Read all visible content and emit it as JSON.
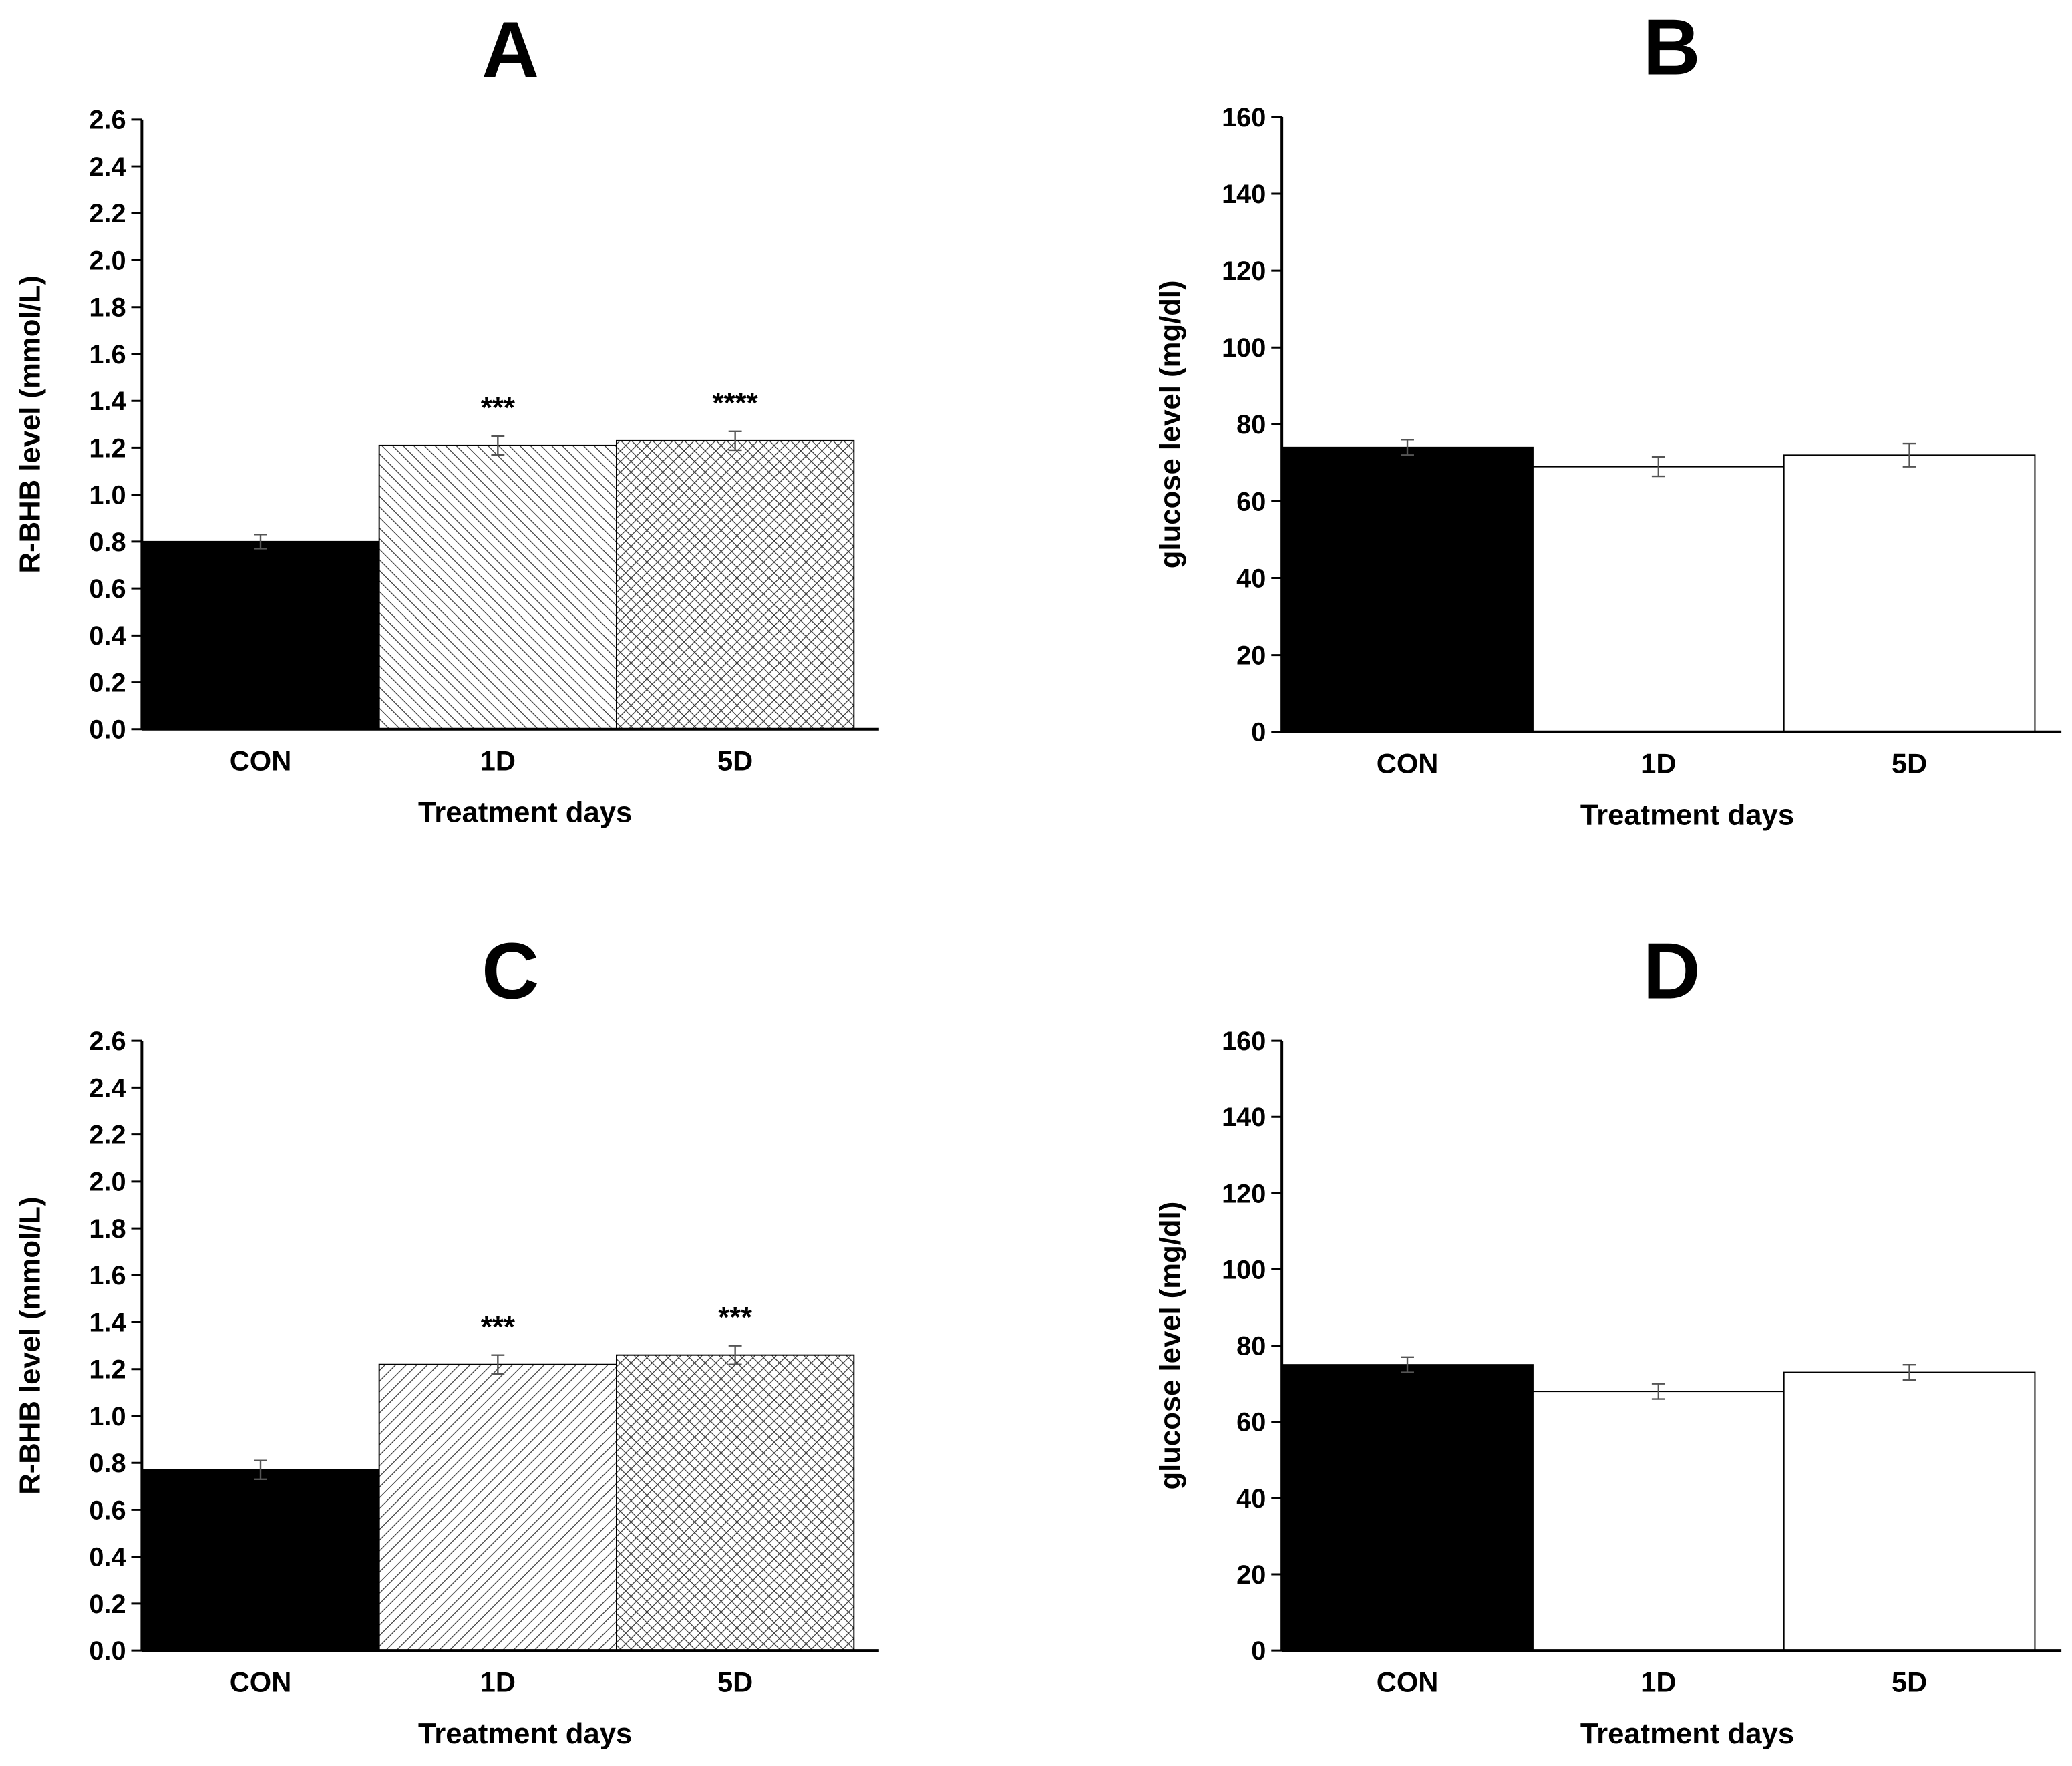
{
  "chart_data": [
    {
      "type": "bar",
      "title": "A",
      "x_label": "Treatment days",
      "y_label": "R-BHB level (mmol/L)",
      "categories": [
        "CON",
        "1D",
        "5D"
      ],
      "values": [
        0.8,
        1.21,
        1.23
      ],
      "errors": [
        0.03,
        0.04,
        0.04
      ],
      "annotations": [
        null,
        "***",
        "****"
      ],
      "colors": [
        "#000000",
        "#ffffff",
        "#ffffff"
      ],
      "patterns": [
        "solid",
        "diag-down",
        "cross"
      ],
      "ylim": [
        0,
        2.6
      ],
      "yticks": [
        {
          "value": 0,
          "label": "0.0"
        },
        0.2,
        0.4,
        0.6,
        0.8,
        {
          "value": 1,
          "label": "1.0"
        },
        1.2,
        1.4,
        1.6,
        1.8,
        {
          "value": 2,
          "label": "2.0"
        },
        2.2,
        2.4,
        2.6
      ]
    },
    {
      "type": "bar",
      "title": "B",
      "x_label": "Treatment days",
      "y_label": "glucose level (mg/dl)",
      "categories": [
        "CON",
        "1D",
        "5D"
      ],
      "values": [
        74,
        69,
        72
      ],
      "errors": [
        2,
        2.5,
        3
      ],
      "annotations": [
        null,
        null,
        null
      ],
      "colors": [
        "#000000",
        "#ffffff",
        "#ffffff"
      ],
      "patterns": [
        "solid",
        "none",
        "none"
      ],
      "ylim": [
        0,
        160
      ],
      "yticks": [
        0,
        20,
        40,
        60,
        80,
        100,
        120,
        140,
        160
      ]
    },
    {
      "type": "bar",
      "title": "C",
      "x_label": "Treatment days",
      "y_label": "R-BHB level (mmol/L)",
      "categories": [
        "CON",
        "1D",
        "5D"
      ],
      "values": [
        0.77,
        1.22,
        1.26
      ],
      "errors": [
        0.04,
        0.04,
        0.04
      ],
      "annotations": [
        null,
        "***",
        "***"
      ],
      "colors": [
        "#000000",
        "#ffffff",
        "#ffffff"
      ],
      "patterns": [
        "solid",
        "diag-up",
        "cross"
      ],
      "ylim": [
        0,
        2.6
      ],
      "yticks": [
        {
          "value": 0,
          "label": "0.0"
        },
        0.2,
        0.4,
        0.6,
        0.8,
        {
          "value": 1,
          "label": "1.0"
        },
        1.2,
        1.4,
        1.6,
        1.8,
        {
          "value": 2,
          "label": "2.0"
        },
        2.2,
        2.4,
        2.6
      ]
    },
    {
      "type": "bar",
      "title": "D",
      "x_label": "Treatment days",
      "y_label": "glucose level (mg/dl)",
      "categories": [
        "CON",
        "1D",
        "5D"
      ],
      "values": [
        75,
        68,
        73
      ],
      "errors": [
        2,
        2,
        2
      ],
      "annotations": [
        null,
        null,
        null
      ],
      "colors": [
        "#000000",
        "#ffffff",
        "#ffffff"
      ],
      "patterns": [
        "solid",
        "none",
        "none"
      ],
      "ylim": [
        0,
        160
      ],
      "yticks": [
        0,
        20,
        40,
        60,
        80,
        100,
        120,
        140,
        160
      ]
    }
  ]
}
